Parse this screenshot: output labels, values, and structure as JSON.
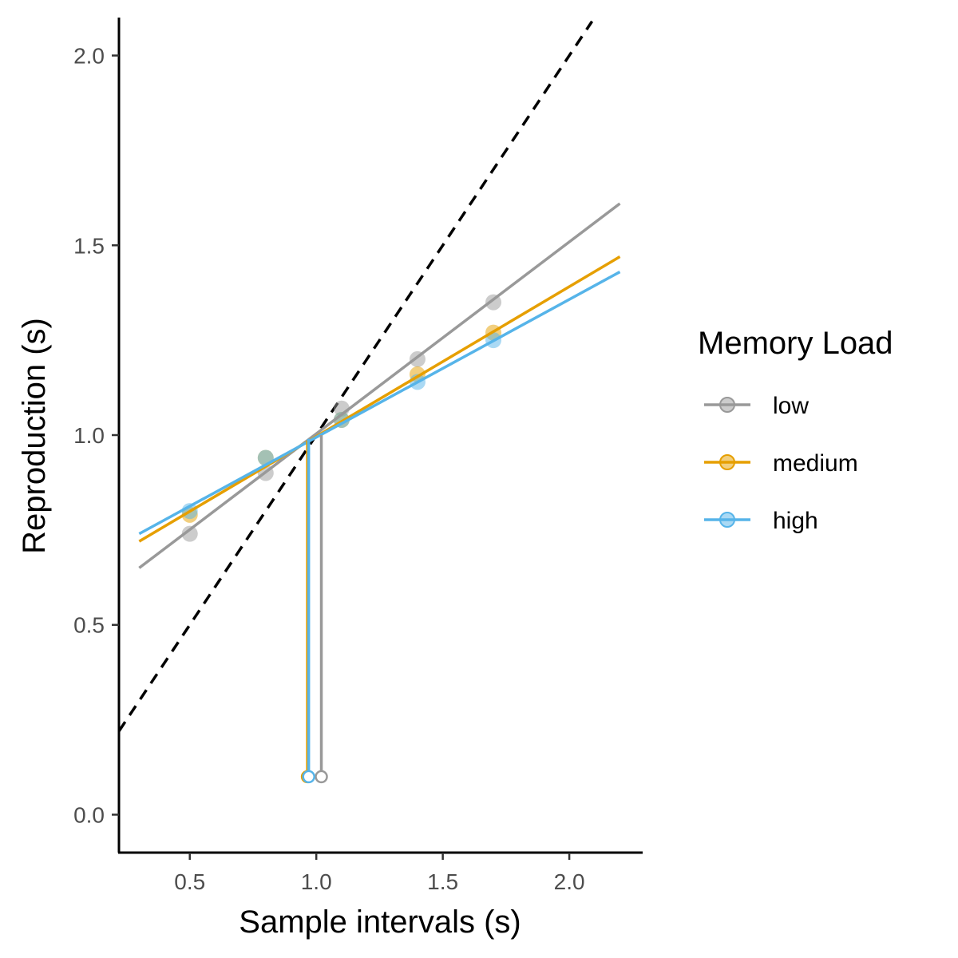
{
  "chart_data": {
    "type": "scatter",
    "xlabel": "Sample intervals (s)",
    "ylabel": "Reproduction (s)",
    "xlim": [
      0.22,
      2.29
    ],
    "ylim": [
      -0.1,
      2.1
    ],
    "xticks": [
      0.5,
      1.0,
      1.5,
      2.0
    ],
    "xtick_labels": [
      "0.5",
      "1.0",
      "1.5",
      "2.0"
    ],
    "yticks": [
      0.0,
      0.5,
      1.0,
      1.5,
      2.0
    ],
    "ytick_labels": [
      "0.0",
      "0.5",
      "1.0",
      "1.5",
      "2.0"
    ],
    "grid": false,
    "legend": {
      "title": "Memory Load",
      "placement": "right"
    },
    "reference_line": {
      "description": "identity y = x",
      "style": "dashed",
      "color": "#000000",
      "x": [
        0.22,
        2.09
      ]
    },
    "series": [
      {
        "name": "low",
        "color": "#999999",
        "points": {
          "x": [
            0.5,
            0.8,
            1.1,
            1.4,
            1.7
          ],
          "y": [
            0.74,
            0.9,
            1.07,
            1.2,
            1.35
          ]
        },
        "fit": {
          "x": [
            0.3,
            2.2
          ],
          "y": [
            0.65,
            1.61
          ]
        },
        "indifference_point": {
          "x": 1.02,
          "y_top": 1.0,
          "y_bottom": 0.1
        }
      },
      {
        "name": "medium",
        "color": "#E69F00",
        "points": {
          "x": [
            0.5,
            0.8,
            1.1,
            1.4,
            1.7
          ],
          "y": [
            0.79,
            0.94,
            1.04,
            1.16,
            1.27
          ]
        },
        "fit": {
          "x": [
            0.3,
            2.2
          ],
          "y": [
            0.72,
            1.47
          ]
        },
        "indifference_point": {
          "x": 0.965,
          "y_top": 0.985,
          "y_bottom": 0.1
        }
      },
      {
        "name": "high",
        "color": "#56B4E9",
        "points": {
          "x": [
            0.5,
            0.8,
            1.1,
            1.4,
            1.7
          ],
          "y": [
            0.8,
            0.94,
            1.04,
            1.14,
            1.25
          ]
        },
        "fit": {
          "x": [
            0.3,
            2.2
          ],
          "y": [
            0.74,
            1.43
          ]
        },
        "indifference_point": {
          "x": 0.97,
          "y_top": 0.99,
          "y_bottom": 0.1
        }
      }
    ]
  }
}
